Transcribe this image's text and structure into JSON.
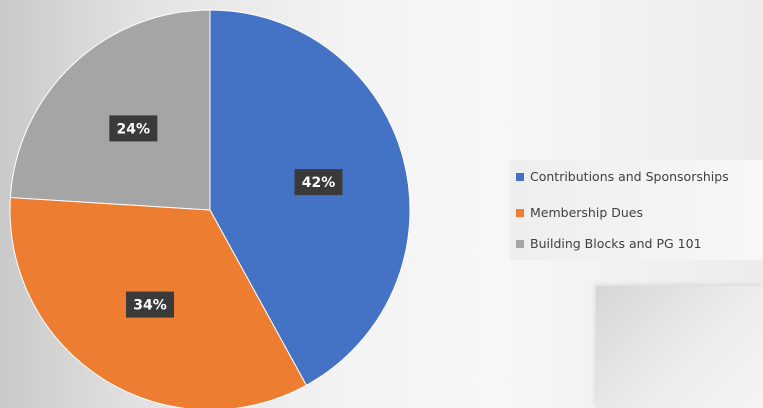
{
  "chart_data": {
    "type": "pie",
    "title": "",
    "categories": [
      "Contributions and Sponsorships",
      "Membership Dues",
      "Building Blocks and PG 101"
    ],
    "values": [
      42,
      34,
      24
    ],
    "value_labels": [
      "42%",
      "34%",
      "24%"
    ],
    "colors": [
      "#4472C4",
      "#ED7D31",
      "#A5A5A5"
    ],
    "start_angle_deg": 0,
    "direction": "clockwise",
    "legend_position": "right"
  },
  "legend": {
    "items": [
      {
        "label": "Contributions and Sponsorships",
        "color": "#4472C4"
      },
      {
        "label": "Membership Dues",
        "color": "#ED7D31"
      },
      {
        "label": "Building Blocks and PG 101",
        "color": "#A5A5A5"
      }
    ]
  }
}
